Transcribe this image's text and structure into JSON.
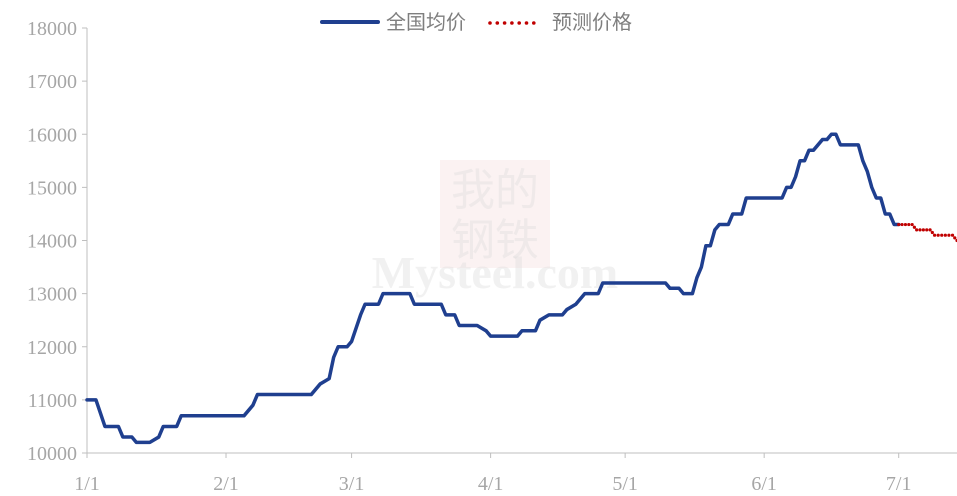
{
  "chart_data": {
    "type": "line",
    "title": "",
    "xlabel": "",
    "ylabel": "",
    "ylim": [
      10000,
      18000
    ],
    "y_ticks": [
      10000,
      11000,
      12000,
      13000,
      14000,
      15000,
      16000,
      17000,
      18000
    ],
    "y_tick_labels": [
      "10000",
      "11000",
      "12000",
      "13000",
      "14000",
      "15000",
      "16000",
      "17000",
      "18000"
    ],
    "x_ticks": [
      "1/1",
      "2/1",
      "3/1",
      "4/1",
      "5/1",
      "6/1",
      "7/1"
    ],
    "x_tick_dates": [
      "2022-01-01",
      "2022-02-01",
      "2022-03-01",
      "2022-04-01",
      "2022-05-01",
      "2022-06-01",
      "2022-07-01"
    ],
    "xlim": [
      "2022-01-01",
      "2022-07-14"
    ],
    "grid": false,
    "legend_position": "top-center",
    "series": [
      {
        "name": "全国均价",
        "color": "#1f3f8f",
        "style": "solid",
        "points": [
          [
            "2022-01-01",
            11000
          ],
          [
            "2022-01-03",
            11000
          ],
          [
            "2022-01-05",
            10500
          ],
          [
            "2022-01-08",
            10500
          ],
          [
            "2022-01-09",
            10300
          ],
          [
            "2022-01-11",
            10300
          ],
          [
            "2022-01-12",
            10200
          ],
          [
            "2022-01-15",
            10200
          ],
          [
            "2022-01-17",
            10300
          ],
          [
            "2022-01-18",
            10500
          ],
          [
            "2022-01-21",
            10500
          ],
          [
            "2022-01-22",
            10700
          ],
          [
            "2022-01-31",
            10700
          ],
          [
            "2022-02-05",
            10700
          ],
          [
            "2022-02-07",
            10900
          ],
          [
            "2022-02-08",
            11100
          ],
          [
            "2022-02-15",
            11100
          ],
          [
            "2022-02-20",
            11100
          ],
          [
            "2022-02-22",
            11300
          ],
          [
            "2022-02-24",
            11400
          ],
          [
            "2022-02-25",
            11800
          ],
          [
            "2022-02-26",
            12000
          ],
          [
            "2022-02-28",
            12000
          ],
          [
            "2022-03-01",
            12100
          ],
          [
            "2022-03-03",
            12600
          ],
          [
            "2022-03-04",
            12800
          ],
          [
            "2022-03-07",
            12800
          ],
          [
            "2022-03-08",
            13000
          ],
          [
            "2022-03-14",
            13000
          ],
          [
            "2022-03-15",
            12800
          ],
          [
            "2022-03-21",
            12800
          ],
          [
            "2022-03-22",
            12600
          ],
          [
            "2022-03-24",
            12600
          ],
          [
            "2022-03-25",
            12400
          ],
          [
            "2022-03-29",
            12400
          ],
          [
            "2022-03-31",
            12300
          ],
          [
            "2022-04-01",
            12200
          ],
          [
            "2022-04-07",
            12200
          ],
          [
            "2022-04-08",
            12300
          ],
          [
            "2022-04-11",
            12300
          ],
          [
            "2022-04-12",
            12500
          ],
          [
            "2022-04-14",
            12600
          ],
          [
            "2022-04-17",
            12600
          ],
          [
            "2022-04-18",
            12700
          ],
          [
            "2022-04-20",
            12800
          ],
          [
            "2022-04-22",
            13000
          ],
          [
            "2022-04-25",
            13000
          ],
          [
            "2022-04-26",
            13200
          ],
          [
            "2022-05-10",
            13200
          ],
          [
            "2022-05-11",
            13100
          ],
          [
            "2022-05-13",
            13100
          ],
          [
            "2022-05-14",
            13000
          ],
          [
            "2022-05-16",
            13000
          ],
          [
            "2022-05-17",
            13300
          ],
          [
            "2022-05-18",
            13500
          ],
          [
            "2022-05-19",
            13900
          ],
          [
            "2022-05-20",
            13900
          ],
          [
            "2022-05-21",
            14200
          ],
          [
            "2022-05-22",
            14300
          ],
          [
            "2022-05-24",
            14300
          ],
          [
            "2022-05-25",
            14500
          ],
          [
            "2022-05-27",
            14500
          ],
          [
            "2022-05-28",
            14800
          ],
          [
            "2022-06-02",
            14800
          ],
          [
            "2022-06-05",
            14800
          ],
          [
            "2022-06-06",
            15000
          ],
          [
            "2022-06-07",
            15000
          ],
          [
            "2022-06-08",
            15200
          ],
          [
            "2022-06-09",
            15500
          ],
          [
            "2022-06-10",
            15500
          ],
          [
            "2022-06-11",
            15700
          ],
          [
            "2022-06-12",
            15700
          ],
          [
            "2022-06-14",
            15900
          ],
          [
            "2022-06-15",
            15900
          ],
          [
            "2022-06-16",
            16000
          ],
          [
            "2022-06-17",
            16000
          ],
          [
            "2022-06-18",
            15800
          ],
          [
            "2022-06-22",
            15800
          ],
          [
            "2022-06-23",
            15500
          ],
          [
            "2022-06-24",
            15300
          ],
          [
            "2022-06-25",
            15000
          ],
          [
            "2022-06-26",
            14800
          ],
          [
            "2022-06-27",
            14800
          ],
          [
            "2022-06-28",
            14500
          ],
          [
            "2022-06-29",
            14500
          ],
          [
            "2022-06-30",
            14300
          ],
          [
            "2022-07-01",
            14300
          ]
        ]
      },
      {
        "name": "预测价格",
        "color": "#c00000",
        "style": "dotted",
        "points": [
          [
            "2022-07-01",
            14300
          ],
          [
            "2022-07-04",
            14300
          ],
          [
            "2022-07-05",
            14200
          ],
          [
            "2022-07-08",
            14200
          ],
          [
            "2022-07-09",
            14100
          ],
          [
            "2022-07-13",
            14100
          ],
          [
            "2022-07-14",
            14000
          ]
        ]
      }
    ],
    "watermark": {
      "lines": [
        "我的",
        "钢铁"
      ],
      "brand": "Mysteel.com"
    }
  }
}
